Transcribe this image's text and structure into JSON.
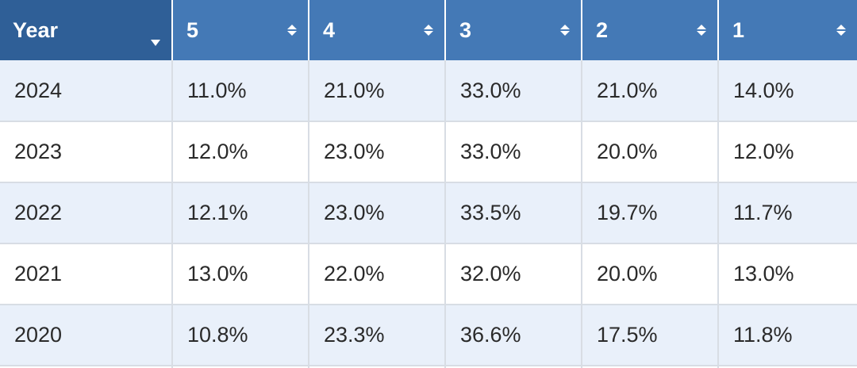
{
  "table": {
    "headers": [
      {
        "label": "Year",
        "sort": "desc"
      },
      {
        "label": "5",
        "sort": "none"
      },
      {
        "label": "4",
        "sort": "none"
      },
      {
        "label": "3",
        "sort": "none"
      },
      {
        "label": "2",
        "sort": "none"
      },
      {
        "label": "1",
        "sort": "none"
      }
    ],
    "rows": [
      [
        "2024",
        "11.0%",
        "21.0%",
        "33.0%",
        "21.0%",
        "14.0%"
      ],
      [
        "2023",
        "12.0%",
        "23.0%",
        "33.0%",
        "20.0%",
        "12.0%"
      ],
      [
        "2022",
        "12.1%",
        "23.0%",
        "33.5%",
        "19.7%",
        "11.7%"
      ],
      [
        "2021",
        "13.0%",
        "22.0%",
        "32.0%",
        "20.0%",
        "13.0%"
      ],
      [
        "2020",
        "10.8%",
        "23.3%",
        "36.6%",
        "17.5%",
        "11.8%"
      ]
    ]
  },
  "colors": {
    "header_bg": "#4479b6",
    "sorted_header_bg": "#2f5f97",
    "odd_row_bg": "#e9f0fa",
    "even_row_bg": "#ffffff",
    "grid_line": "#d8dde4"
  }
}
